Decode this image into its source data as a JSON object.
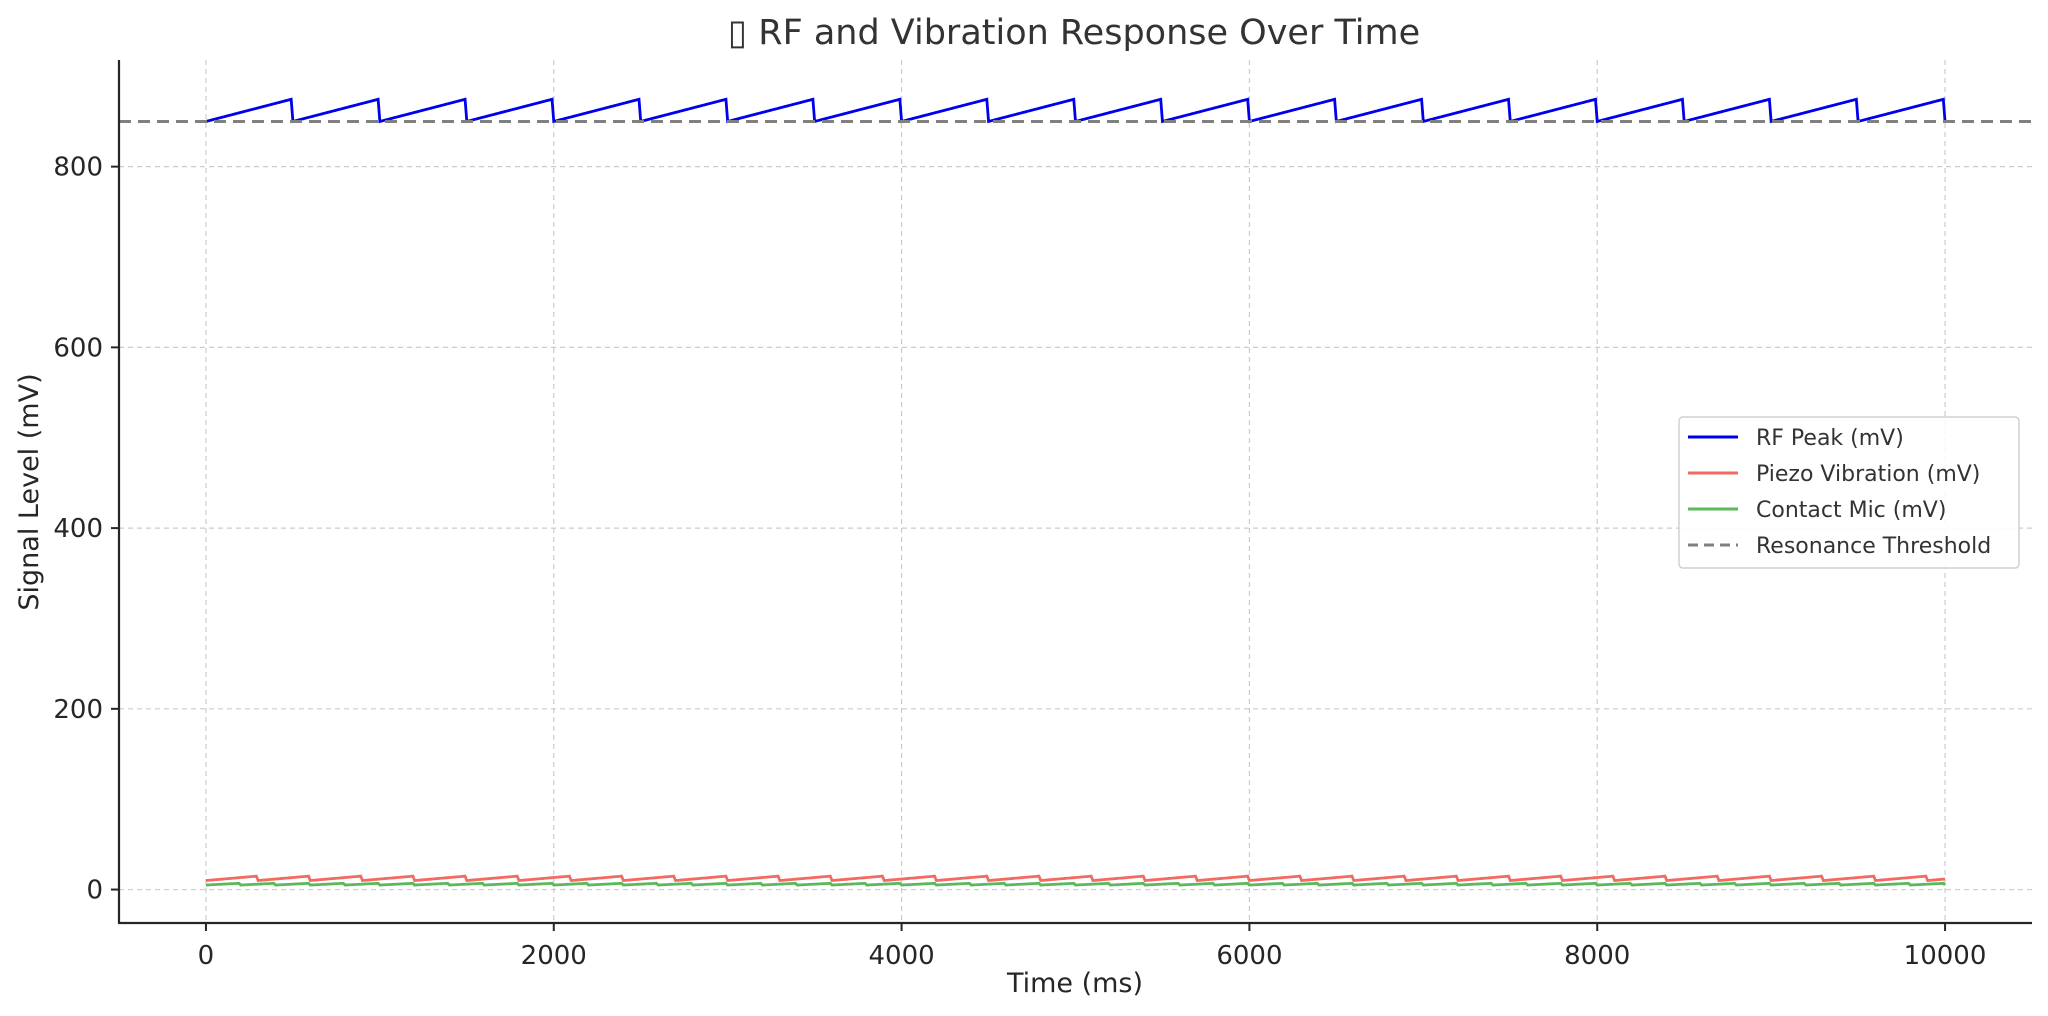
{
  "chart_data": {
    "type": "line",
    "title": "▯ RF and Vibration Response Over Time",
    "xlabel": "Time (ms)",
    "ylabel": "Signal Level (mV)",
    "xlim": [
      -500,
      10500
    ],
    "ylim": [
      -37,
      918
    ],
    "xticks": [
      0,
      2000,
      4000,
      6000,
      8000,
      10000
    ],
    "xtick_labels": [
      "0",
      "2000",
      "4000",
      "6000",
      "8000",
      "10000"
    ],
    "yticks": [
      0,
      200,
      400,
      600,
      800
    ],
    "ytick_labels": [
      "0",
      "200",
      "400",
      "600",
      "800"
    ],
    "grid": true,
    "legend_position": "center right",
    "series": [
      {
        "name": "RF Peak (mV)",
        "color": "#0000ee",
        "style": "solid",
        "pattern": "sawtooth",
        "x_start": 0,
        "x_end": 10000,
        "step": 10,
        "base": 850,
        "amplitude": 25,
        "period_ms": 500
      },
      {
        "name": "Piezo Vibration (mV)",
        "color": "#f26b63",
        "style": "solid",
        "pattern": "sawtooth",
        "x_start": 0,
        "x_end": 10000,
        "step": 10,
        "base": 10,
        "amplitude": 5,
        "period_ms": 300
      },
      {
        "name": "Contact Mic (mV)",
        "color": "#5cb85c",
        "style": "solid",
        "pattern": "sawtooth",
        "x_start": 0,
        "x_end": 10000,
        "step": 10,
        "base": 5,
        "amplitude": 2,
        "period_ms": 200
      },
      {
        "name": "Resonance Threshold",
        "color": "#808080",
        "style": "dashed",
        "pattern": "hline",
        "value": 850
      }
    ]
  }
}
